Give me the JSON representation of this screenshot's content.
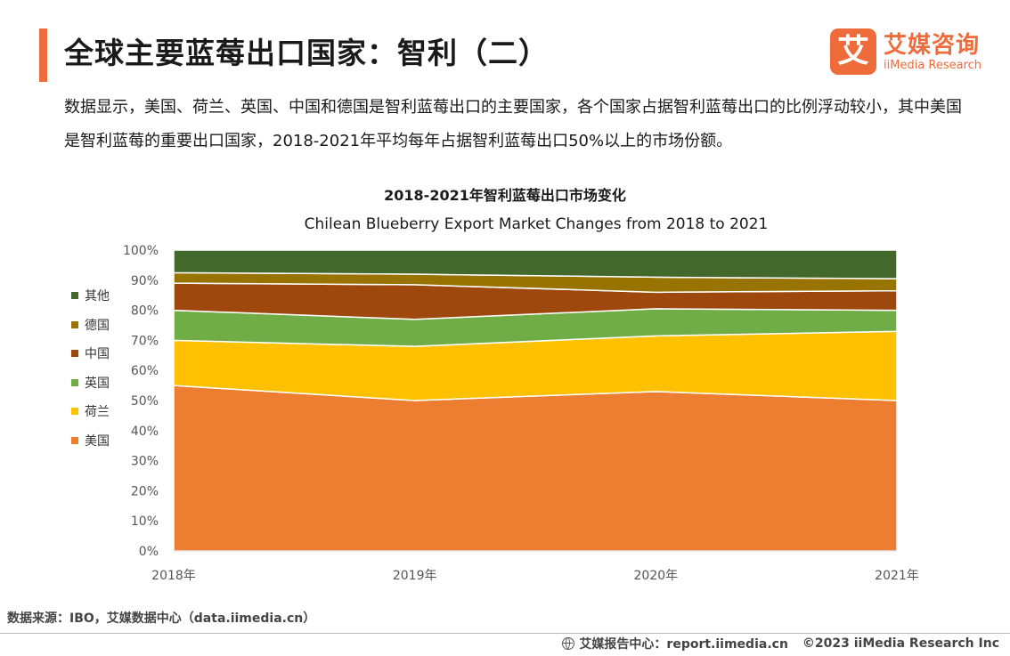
{
  "header": {
    "title": "全球主要蓝莓出口国家：智利（二）",
    "logo_mark": "艾",
    "logo_cn": "艾媒咨询",
    "logo_en": "iiMedia Research"
  },
  "description": "数据显示，美国、荷兰、英国、中国和德国是智利蓝莓出口的主要国家，各个国家占据智利蓝莓出口的比例浮动较小，其中美国是智利蓝莓的重要出口国家，2018-2021年平均每年占据智利蓝莓出口50%以上的市场份额。",
  "chart_data": {
    "type": "area",
    "stacked": true,
    "title": "2018-2021年智利蓝莓出口市场变化",
    "subtitle": "Chilean Blueberry Export Market Changes from 2018 to 2021",
    "categories": [
      "2018年",
      "2019年",
      "2020年",
      "2021年"
    ],
    "y_ticks": [
      "0%",
      "10%",
      "20%",
      "30%",
      "40%",
      "50%",
      "60%",
      "70%",
      "80%",
      "90%",
      "100%"
    ],
    "ylim": [
      0,
      100
    ],
    "series": [
      {
        "name": "美国",
        "color": "#ed7d31",
        "values": [
          55,
          50,
          53,
          50
        ]
      },
      {
        "name": "荷兰",
        "color": "#ffc000",
        "values": [
          15,
          18,
          18.5,
          23
        ]
      },
      {
        "name": "英国",
        "color": "#70ad47",
        "values": [
          10,
          9,
          9,
          7
        ]
      },
      {
        "name": "中国",
        "color": "#9e480e",
        "values": [
          9,
          11.5,
          5.5,
          6.5
        ]
      },
      {
        "name": "德国",
        "color": "#997300",
        "values": [
          3.5,
          3.5,
          5,
          4
        ]
      },
      {
        "name": "其他",
        "color": "#43682b",
        "values": [
          7.5,
          8,
          9,
          9.5
        ]
      }
    ],
    "legend_position": "left",
    "grid": false
  },
  "footer": {
    "source": "数据来源：IBO，艾媒数据中心（data.iimedia.cn）",
    "site": "艾媒报告中心：report.iimedia.cn",
    "copyright": "©2023  iiMedia Research  Inc"
  }
}
